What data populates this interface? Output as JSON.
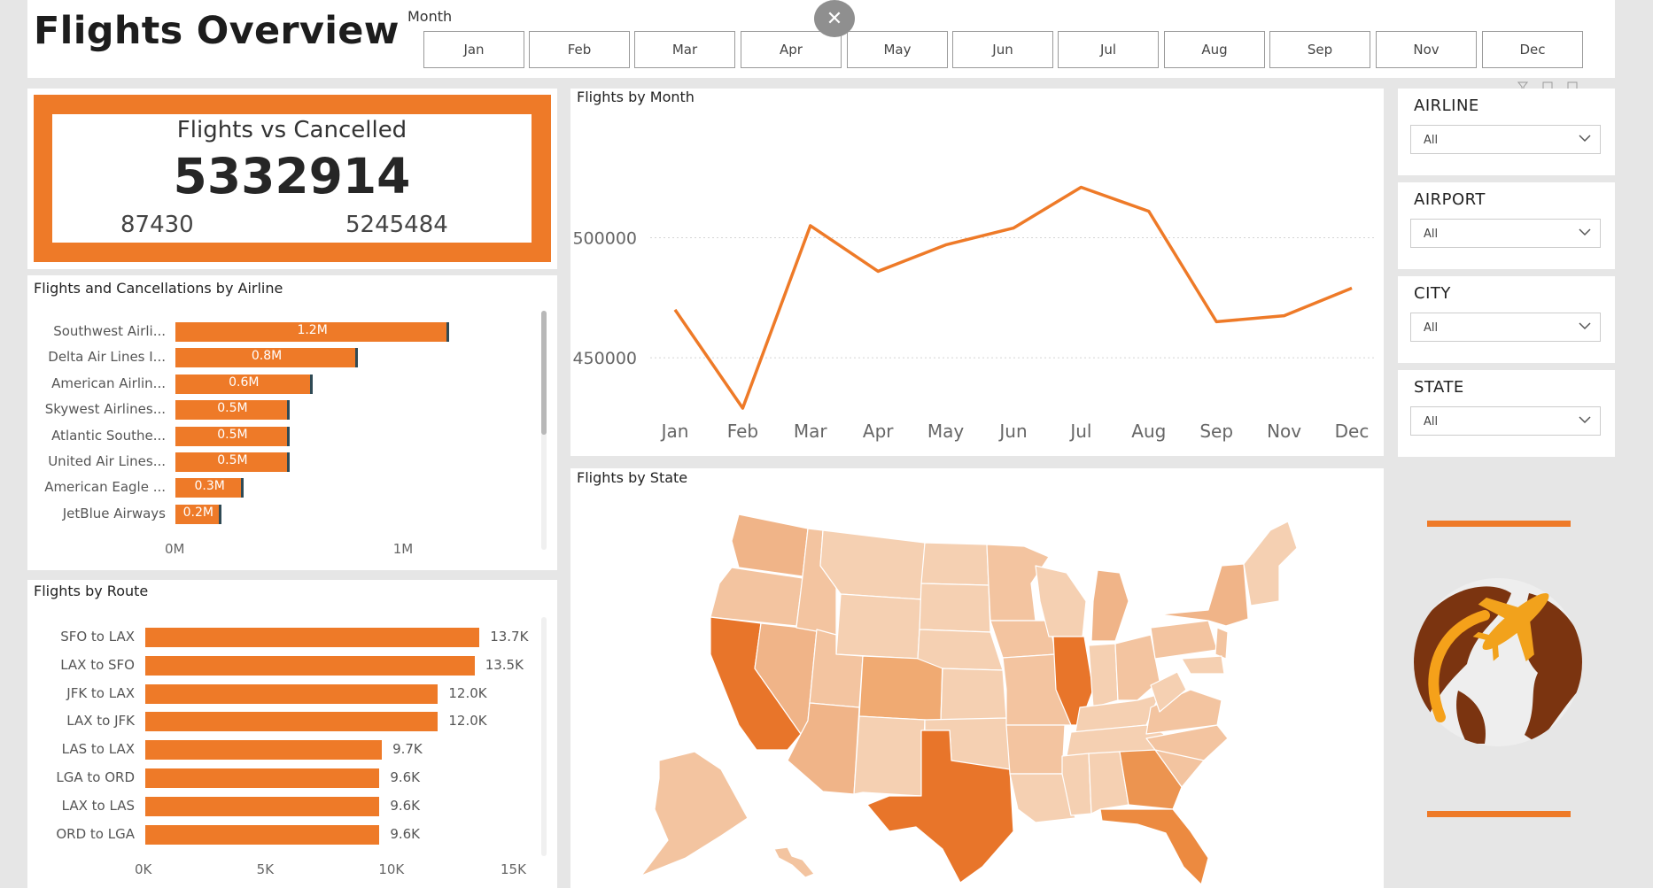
{
  "header": {
    "title": "Flights Overview",
    "month_label": "Month",
    "months": [
      "Jan",
      "Feb",
      "Mar",
      "Apr",
      "May",
      "Jun",
      "Jul",
      "Aug",
      "Sep",
      "Nov",
      "Dec"
    ],
    "close_symbol": "✕"
  },
  "kpi": {
    "title": "Flights vs Cancelled",
    "total": "5332914",
    "cancelled": "87430",
    "not_cancelled": "5245484",
    "accent": "#ee7a28"
  },
  "airline_chart": {
    "title": "Flights and Cancellations by Airline",
    "chart_data": {
      "type": "bar",
      "categories": [
        "Southwest Airli...",
        "Delta Air Lines I...",
        "American Airlin...",
        "Skywest Airlines...",
        "Atlantic Southe...",
        "United Air Lines...",
        "American Eagle ...",
        "JetBlue Airways"
      ],
      "values": [
        1.2,
        0.8,
        0.6,
        0.5,
        0.5,
        0.5,
        0.3,
        0.2
      ],
      "value_labels": [
        "1.2M",
        "0.8M",
        "0.6M",
        "0.5M",
        "0.5M",
        "0.5M",
        "0.3M",
        "0.2M"
      ],
      "xticks": [
        "0M",
        "1M"
      ],
      "xlim": [
        0,
        1.3
      ]
    }
  },
  "route_chart": {
    "title": "Flights by Route",
    "chart_data": {
      "type": "bar",
      "categories": [
        "SFO to LAX",
        "LAX to SFO",
        "JFK to LAX",
        "LAX to JFK",
        "LAS to LAX",
        "LGA to ORD",
        "LAX to LAS",
        "ORD to LGA"
      ],
      "values": [
        13.7,
        13.5,
        12.0,
        12.0,
        9.7,
        9.6,
        9.6,
        9.6
      ],
      "value_labels": [
        "13.7K",
        "13.5K",
        "12.0K",
        "12.0K",
        "9.7K",
        "9.6K",
        "9.6K",
        "9.6K"
      ],
      "xticks": [
        "0K",
        "5K",
        "10K",
        "15K"
      ],
      "xlim": [
        0,
        15
      ]
    }
  },
  "month_chart": {
    "title": "Flights by Month",
    "chart_data": {
      "type": "line",
      "categories": [
        "Jan",
        "Feb",
        "Mar",
        "Apr",
        "May",
        "Jun",
        "Jul",
        "Aug",
        "Sep",
        "Nov",
        "Dec"
      ],
      "values": [
        470000,
        429000,
        505000,
        486000,
        497000,
        504000,
        521000,
        511000,
        465000,
        467500,
        479000
      ],
      "yticks": [
        "500000",
        "450000"
      ],
      "ylim": [
        422000,
        540000
      ],
      "color": "#ee7a28"
    }
  },
  "state_map": {
    "title": "Flights by State"
  },
  "slicers": [
    {
      "title": "AIRLINE",
      "value": "All"
    },
    {
      "title": "AIRPORT",
      "value": "All"
    },
    {
      "title": "CITY",
      "value": "All"
    },
    {
      "title": "STATE",
      "value": "All"
    }
  ],
  "icons": [
    "close-icon",
    "chevron-down-icon",
    "globe-plane-logo",
    "filter-icon",
    "focus-mode-icon",
    "more-options-icon"
  ]
}
